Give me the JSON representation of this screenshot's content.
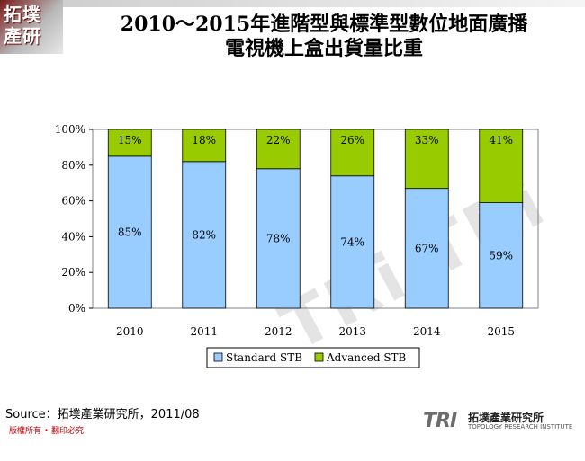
{
  "logo": {
    "text": "拓墣\n產研"
  },
  "title": "2010～2015年進階型與標準型數位地面廣播\n電視機上盒出貨量比重",
  "source": "Source：拓墣產業研究所，2011/08",
  "copyright": "版權所有 • 翻印必究",
  "brand": {
    "tri": "TRI",
    "name": "拓墣產業研究所",
    "english": "TOPOLOGY RESEARCH INSTITUTE"
  },
  "watermark": "TRi TRi",
  "colors": {
    "standard": "#99ccff",
    "advanced": "#99cc00"
  },
  "chart_data": {
    "type": "bar",
    "stacked": true,
    "categories": [
      "2010",
      "2011",
      "2012",
      "2013",
      "2014",
      "2015"
    ],
    "series": [
      {
        "name": "Standard STB",
        "values": [
          85,
          82,
          78,
          74,
          67,
          59
        ],
        "labels": [
          "85%",
          "82%",
          "78%",
          "74%",
          "67%",
          "59%"
        ]
      },
      {
        "name": "Advanced STB",
        "values": [
          15,
          18,
          22,
          26,
          33,
          41
        ],
        "labels": [
          "15%",
          "18%",
          "22%",
          "26%",
          "33%",
          "41%"
        ]
      }
    ],
    "y_ticks": [
      "0%",
      "20%",
      "40%",
      "60%",
      "80%",
      "100%"
    ],
    "ylim": [
      0,
      100
    ],
    "grid": false,
    "legend_position": "bottom"
  }
}
